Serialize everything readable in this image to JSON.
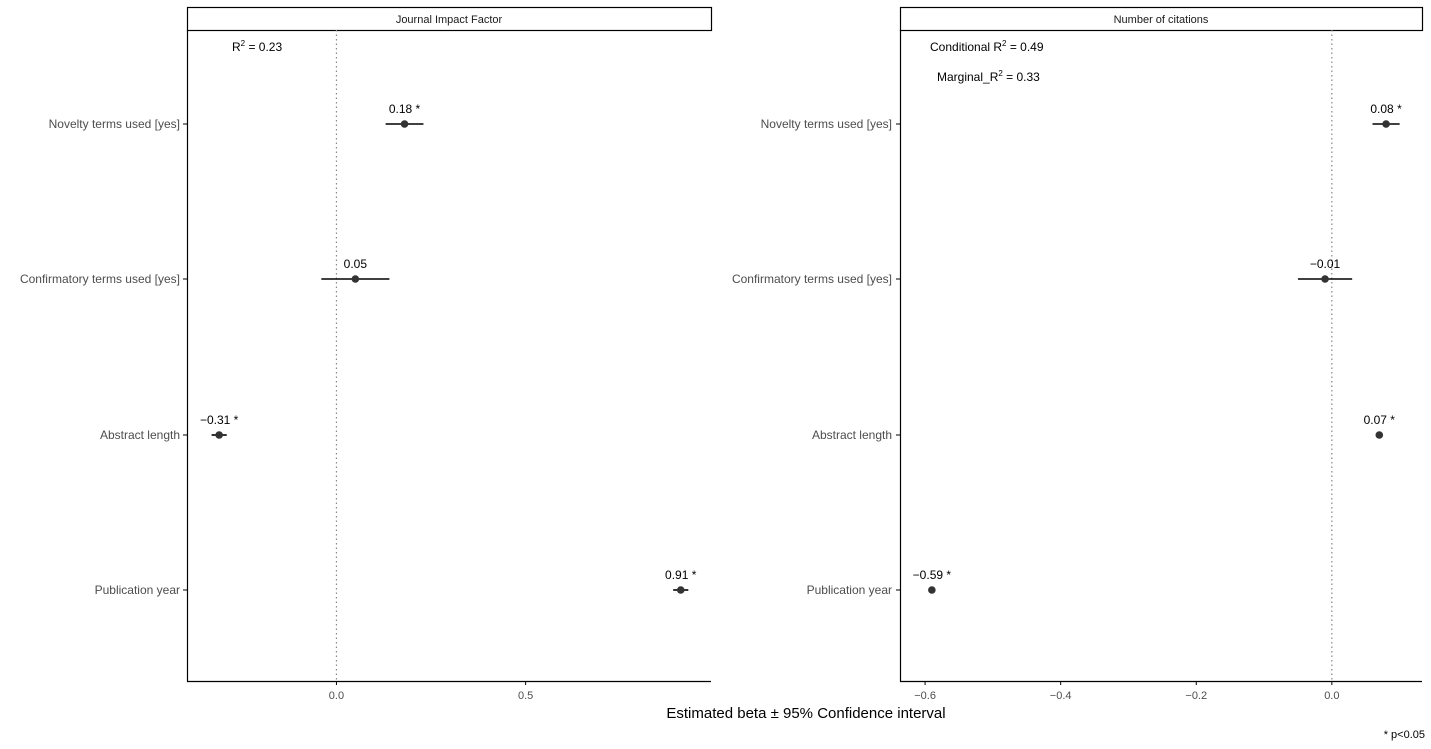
{
  "chart_data": [
    {
      "type": "scatter",
      "variant": "forest-plot",
      "title": "Journal Impact Factor",
      "categories": [
        "Novelty terms used [yes]",
        "Confirmatory terms used [yes]",
        "Abstract length",
        "Publication year"
      ],
      "estimates": [
        0.18,
        0.05,
        -0.31,
        0.91
      ],
      "ci_low": [
        0.13,
        -0.04,
        -0.33,
        0.89
      ],
      "ci_high": [
        0.23,
        0.14,
        -0.29,
        0.93
      ],
      "labels": [
        "0.18 *",
        "0.05",
        "−0.31 *",
        "0.91 *"
      ],
      "xlim": [
        -0.395,
        0.99
      ],
      "xticks": [
        0.0,
        0.5
      ],
      "xtick_labels": [
        "0.0",
        "0.5"
      ],
      "reference_line": 0,
      "annotations": [
        {
          "base": "R",
          "sup": "2",
          "rest": " = 0.23"
        }
      ],
      "grid": false
    },
    {
      "type": "scatter",
      "variant": "forest-plot",
      "title": "Number of citations",
      "categories": [
        "Novelty terms used [yes]",
        "Confirmatory terms used [yes]",
        "Abstract length",
        "Publication year"
      ],
      "estimates": [
        0.08,
        -0.01,
        0.07,
        -0.59
      ],
      "ci_low": [
        0.06,
        -0.05,
        0.065,
        -0.595
      ],
      "ci_high": [
        0.1,
        0.03,
        0.075,
        -0.585
      ],
      "labels": [
        "0.08 *",
        "−0.01",
        "0.07 *",
        "−0.59 *"
      ],
      "xlim": [
        -0.637,
        0.133
      ],
      "xticks": [
        -0.6,
        -0.4,
        -0.2,
        0.0
      ],
      "xtick_labels": [
        "−0.6",
        "−0.4",
        "−0.2",
        "0.0"
      ],
      "reference_line": 0,
      "annotations": [
        {
          "base": "Conditional  R",
          "sup": "2",
          "rest": " = 0.49"
        },
        {
          "base": "Marginal_R",
          "sup": "2",
          "rest": " = 0.33"
        }
      ],
      "grid": false
    }
  ],
  "xaxis_title": "Estimated beta ± 95% Confidence interval",
  "footnote": "* p<0.05",
  "colors": {
    "point": "#333333",
    "errorbar": "#000000",
    "reference_line": "#888888",
    "axis": "#000000"
  }
}
